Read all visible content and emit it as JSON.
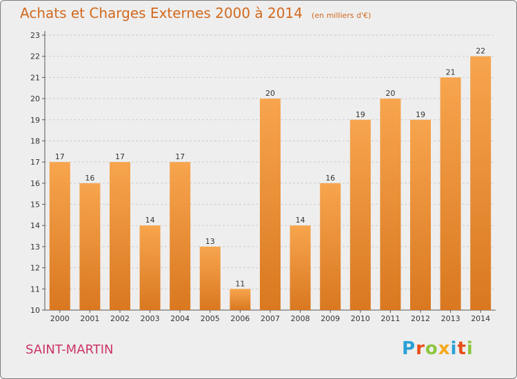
{
  "header": {
    "title": "Achats et Charges Externes 2000 à 2014",
    "unit_note": "(en milliers d'€)"
  },
  "footer": {
    "commune": "SAINT-MARTIN",
    "logo_text": "Proxiti",
    "logo_colors": [
      "#2a9fd6",
      "#e94e1b",
      "#8cc63f",
      "#f7a81b",
      "#2a9fd6",
      "#e94e1b",
      "#8cc63f"
    ]
  },
  "chart_data": {
    "type": "bar",
    "title": "Achats et Charges Externes 2000 à 2014",
    "categories": [
      "2000",
      "2001",
      "2002",
      "2003",
      "2004",
      "2005",
      "2006",
      "2007",
      "2008",
      "2009",
      "2010",
      "2011",
      "2012",
      "2013",
      "2014"
    ],
    "values": [
      17,
      16,
      17,
      14,
      17,
      13,
      11,
      20,
      14,
      16,
      19,
      20,
      19,
      21,
      22
    ],
    "ylim": [
      10,
      23
    ],
    "yticks": [
      10,
      11,
      12,
      13,
      14,
      15,
      16,
      17,
      18,
      19,
      20,
      21,
      22,
      23
    ],
    "grid": true,
    "colors": {
      "bar_top": "#f7a54e",
      "bar_bottom": "#d97820",
      "grid": "#cccccc",
      "axis": "#555555"
    }
  }
}
